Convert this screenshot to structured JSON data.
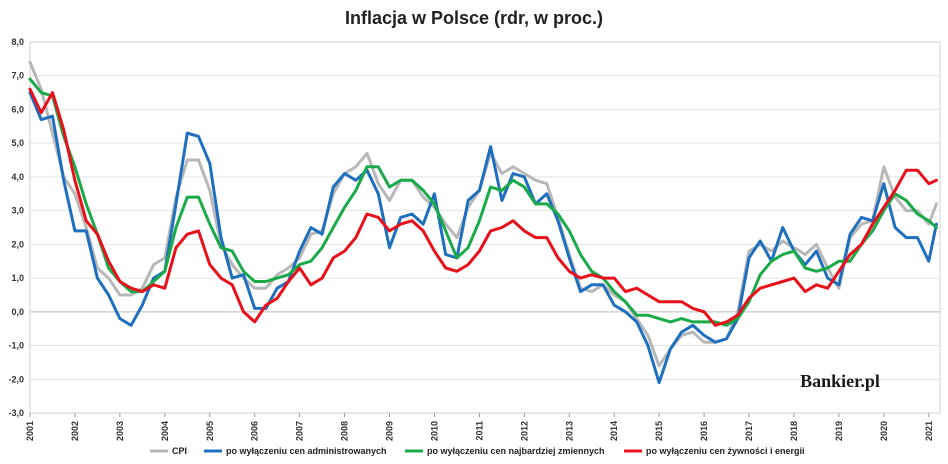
{
  "chart_data": {
    "type": "line",
    "title": "Inflacja w Polsce (rdr, w proc.)",
    "xlabel": "",
    "ylabel": "",
    "ylim": [
      -3,
      8
    ],
    "yticks": [
      "8,0",
      "7,0",
      "6,0",
      "5,0",
      "4,0",
      "3,0",
      "2,0",
      "1,0",
      "0,0",
      "-1,0",
      "-2,0",
      "-3,0"
    ],
    "xticks": [
      "2001",
      "2002",
      "2003",
      "2004",
      "2005",
      "2006",
      "2007",
      "2008",
      "2009",
      "2010",
      "2011",
      "2012",
      "2013",
      "2014",
      "2015",
      "2016",
      "2017",
      "2018",
      "2019",
      "2020",
      "2021"
    ],
    "x_range": [
      2001.0,
      2021.25
    ],
    "grid": true,
    "legend_position": "bottom",
    "series": [
      {
        "name": "CPI",
        "color": "#b8b8b8",
        "x": [
          2001.0,
          2001.25,
          2001.5,
          2001.75,
          2002.0,
          2002.25,
          2002.5,
          2002.75,
          2003.0,
          2003.25,
          2003.5,
          2003.75,
          2004.0,
          2004.25,
          2004.5,
          2004.75,
          2005.0,
          2005.25,
          2005.5,
          2005.75,
          2006.0,
          2006.25,
          2006.5,
          2006.75,
          2007.0,
          2007.25,
          2007.5,
          2007.75,
          2008.0,
          2008.25,
          2008.5,
          2008.75,
          2009.0,
          2009.25,
          2009.5,
          2009.75,
          2010.0,
          2010.25,
          2010.5,
          2010.75,
          2011.0,
          2011.25,
          2011.5,
          2011.75,
          2012.0,
          2012.25,
          2012.5,
          2012.75,
          2013.0,
          2013.25,
          2013.5,
          2013.75,
          2014.0,
          2014.25,
          2014.5,
          2014.75,
          2015.0,
          2015.25,
          2015.5,
          2015.75,
          2016.0,
          2016.25,
          2016.5,
          2016.75,
          2017.0,
          2017.25,
          2017.5,
          2017.75,
          2018.0,
          2018.25,
          2018.5,
          2018.75,
          2019.0,
          2019.25,
          2019.5,
          2019.75,
          2020.0,
          2020.25,
          2020.5,
          2020.75,
          2021.0,
          2021.17
        ],
        "y": [
          7.4,
          6.6,
          5.3,
          4.0,
          3.5,
          2.5,
          1.3,
          1.0,
          0.5,
          0.5,
          0.7,
          1.4,
          1.6,
          3.4,
          4.5,
          4.5,
          3.6,
          2.0,
          1.4,
          1.0,
          0.7,
          0.7,
          1.1,
          1.3,
          1.6,
          2.3,
          2.4,
          3.5,
          4.1,
          4.3,
          4.7,
          3.8,
          3.3,
          3.9,
          3.9,
          3.4,
          3.1,
          2.6,
          2.2,
          3.1,
          3.6,
          4.7,
          4.1,
          4.3,
          4.1,
          3.9,
          3.8,
          2.8,
          1.7,
          0.7,
          0.6,
          0.8,
          0.5,
          0.3,
          -0.2,
          -0.7,
          -1.6,
          -1.1,
          -0.7,
          -0.6,
          -0.9,
          -0.9,
          -0.8,
          0.0,
          1.8,
          2.0,
          1.8,
          2.1,
          1.9,
          1.7,
          2.0,
          1.3,
          0.7,
          2.2,
          2.6,
          2.7,
          4.3,
          3.4,
          3.0,
          3.0,
          2.6,
          3.2
        ]
      },
      {
        "name": "po wyłączeniu cen administrowanych",
        "color": "#1f6fbf",
        "x": [
          2001.0,
          2001.25,
          2001.5,
          2001.75,
          2002.0,
          2002.25,
          2002.5,
          2002.75,
          2003.0,
          2003.25,
          2003.5,
          2003.75,
          2004.0,
          2004.25,
          2004.5,
          2004.75,
          2005.0,
          2005.25,
          2005.5,
          2005.75,
          2006.0,
          2006.25,
          2006.5,
          2006.75,
          2007.0,
          2007.25,
          2007.5,
          2007.75,
          2008.0,
          2008.25,
          2008.5,
          2008.75,
          2009.0,
          2009.25,
          2009.5,
          2009.75,
          2010.0,
          2010.25,
          2010.5,
          2010.75,
          2011.0,
          2011.25,
          2011.5,
          2011.75,
          2012.0,
          2012.25,
          2012.5,
          2012.75,
          2013.0,
          2013.25,
          2013.5,
          2013.75,
          2014.0,
          2014.25,
          2014.5,
          2014.75,
          2015.0,
          2015.25,
          2015.5,
          2015.75,
          2016.0,
          2016.25,
          2016.5,
          2016.75,
          2017.0,
          2017.25,
          2017.5,
          2017.75,
          2018.0,
          2018.25,
          2018.5,
          2018.75,
          2019.0,
          2019.25,
          2019.5,
          2019.75,
          2020.0,
          2020.25,
          2020.5,
          2020.75,
          2021.0,
          2021.17
        ],
        "y": [
          6.5,
          5.7,
          5.8,
          3.9,
          2.4,
          2.4,
          1.0,
          0.5,
          -0.2,
          -0.4,
          0.2,
          1.0,
          1.2,
          3.2,
          5.3,
          5.2,
          4.4,
          2.2,
          1.0,
          1.1,
          0.1,
          0.1,
          0.7,
          0.9,
          1.8,
          2.5,
          2.3,
          3.7,
          4.1,
          3.9,
          4.2,
          3.5,
          1.9,
          2.8,
          2.9,
          2.6,
          3.5,
          1.7,
          1.6,
          3.3,
          3.6,
          4.9,
          3.3,
          4.1,
          4.0,
          3.2,
          3.5,
          2.7,
          1.6,
          0.6,
          0.8,
          0.8,
          0.2,
          0.0,
          -0.3,
          -1.0,
          -2.1,
          -1.1,
          -0.6,
          -0.4,
          -0.7,
          -0.9,
          -0.8,
          -0.2,
          1.6,
          2.1,
          1.5,
          2.5,
          1.8,
          1.4,
          1.8,
          1.0,
          0.8,
          2.3,
          2.8,
          2.7,
          3.8,
          2.5,
          2.2,
          2.2,
          1.5,
          2.6
        ]
      },
      {
        "name": "po wyłączeniu cen najbardziej zmiennych",
        "color": "#1aaa4a",
        "x": [
          2001.0,
          2001.25,
          2001.5,
          2001.75,
          2002.0,
          2002.25,
          2002.5,
          2002.75,
          2003.0,
          2003.25,
          2003.5,
          2003.75,
          2004.0,
          2004.25,
          2004.5,
          2004.75,
          2005.0,
          2005.25,
          2005.5,
          2005.75,
          2006.0,
          2006.25,
          2006.5,
          2006.75,
          2007.0,
          2007.25,
          2007.5,
          2007.75,
          2008.0,
          2008.25,
          2008.5,
          2008.75,
          2009.0,
          2009.25,
          2009.5,
          2009.75,
          2010.0,
          2010.25,
          2010.5,
          2010.75,
          2011.0,
          2011.25,
          2011.5,
          2011.75,
          2012.0,
          2012.25,
          2012.5,
          2012.75,
          2013.0,
          2013.25,
          2013.5,
          2013.75,
          2014.0,
          2014.25,
          2014.5,
          2014.75,
          2015.0,
          2015.25,
          2015.5,
          2015.75,
          2016.0,
          2016.25,
          2016.5,
          2016.75,
          2017.0,
          2017.25,
          2017.5,
          2017.75,
          2018.0,
          2018.25,
          2018.5,
          2018.75,
          2019.0,
          2019.25,
          2019.5,
          2019.75,
          2020.0,
          2020.25,
          2020.5,
          2020.75,
          2021.0,
          2021.17
        ],
        "y": [
          6.9,
          6.5,
          6.4,
          5.2,
          4.3,
          3.2,
          2.3,
          1.3,
          0.9,
          0.6,
          0.6,
          0.9,
          1.2,
          2.5,
          3.4,
          3.4,
          2.6,
          1.9,
          1.8,
          1.2,
          0.9,
          0.9,
          1.0,
          1.1,
          1.4,
          1.5,
          1.9,
          2.5,
          3.1,
          3.6,
          4.3,
          4.3,
          3.7,
          3.9,
          3.9,
          3.6,
          3.2,
          2.4,
          1.6,
          1.9,
          2.7,
          3.7,
          3.6,
          3.9,
          3.7,
          3.2,
          3.2,
          2.9,
          2.4,
          1.7,
          1.2,
          1.0,
          0.6,
          0.3,
          -0.1,
          -0.1,
          -0.2,
          -0.3,
          -0.2,
          -0.3,
          -0.3,
          -0.3,
          -0.4,
          -0.2,
          0.3,
          1.1,
          1.5,
          1.7,
          1.8,
          1.3,
          1.2,
          1.3,
          1.5,
          1.5,
          2.0,
          2.4,
          3.0,
          3.5,
          3.3,
          2.9,
          2.7,
          2.5
        ]
      },
      {
        "name": "po wyłączeniu cen żywności i energii",
        "color": "#e8101a",
        "x": [
          2001.0,
          2001.25,
          2001.5,
          2001.75,
          2002.0,
          2002.25,
          2002.5,
          2002.75,
          2003.0,
          2003.25,
          2003.5,
          2003.75,
          2004.0,
          2004.25,
          2004.5,
          2004.75,
          2005.0,
          2005.25,
          2005.5,
          2005.75,
          2006.0,
          2006.25,
          2006.5,
          2006.75,
          2007.0,
          2007.25,
          2007.5,
          2007.75,
          2008.0,
          2008.25,
          2008.5,
          2008.75,
          2009.0,
          2009.25,
          2009.5,
          2009.75,
          2010.0,
          2010.25,
          2010.5,
          2010.75,
          2011.0,
          2011.25,
          2011.5,
          2011.75,
          2012.0,
          2012.25,
          2012.5,
          2012.75,
          2013.0,
          2013.25,
          2013.5,
          2013.75,
          2014.0,
          2014.25,
          2014.5,
          2014.75,
          2015.0,
          2015.25,
          2015.5,
          2015.75,
          2016.0,
          2016.25,
          2016.5,
          2016.75,
          2017.0,
          2017.25,
          2017.5,
          2017.75,
          2018.0,
          2018.25,
          2018.5,
          2018.75,
          2019.0,
          2019.25,
          2019.5,
          2019.75,
          2020.0,
          2020.25,
          2020.5,
          2020.75,
          2021.0,
          2021.17
        ],
        "y": [
          6.6,
          5.9,
          6.5,
          5.4,
          3.9,
          2.7,
          2.3,
          1.5,
          0.9,
          0.7,
          0.6,
          0.8,
          0.7,
          1.9,
          2.3,
          2.4,
          1.4,
          1.0,
          0.8,
          0.0,
          -0.3,
          0.2,
          0.4,
          0.9,
          1.3,
          0.8,
          1.0,
          1.6,
          1.8,
          2.2,
          2.9,
          2.8,
          2.4,
          2.6,
          2.7,
          2.4,
          1.8,
          1.3,
          1.2,
          1.4,
          1.8,
          2.4,
          2.5,
          2.7,
          2.4,
          2.2,
          2.2,
          1.6,
          1.2,
          1.0,
          1.1,
          1.0,
          1.0,
          0.6,
          0.7,
          0.5,
          0.3,
          0.3,
          0.3,
          0.1,
          0.0,
          -0.4,
          -0.3,
          -0.1,
          0.4,
          0.7,
          0.8,
          0.9,
          1.0,
          0.6,
          0.8,
          0.7,
          1.2,
          1.7,
          2.0,
          2.6,
          3.1,
          3.6,
          4.2,
          4.2,
          3.8,
          3.9
        ]
      }
    ]
  },
  "watermark": {
    "text": "Bankier.pl"
  }
}
